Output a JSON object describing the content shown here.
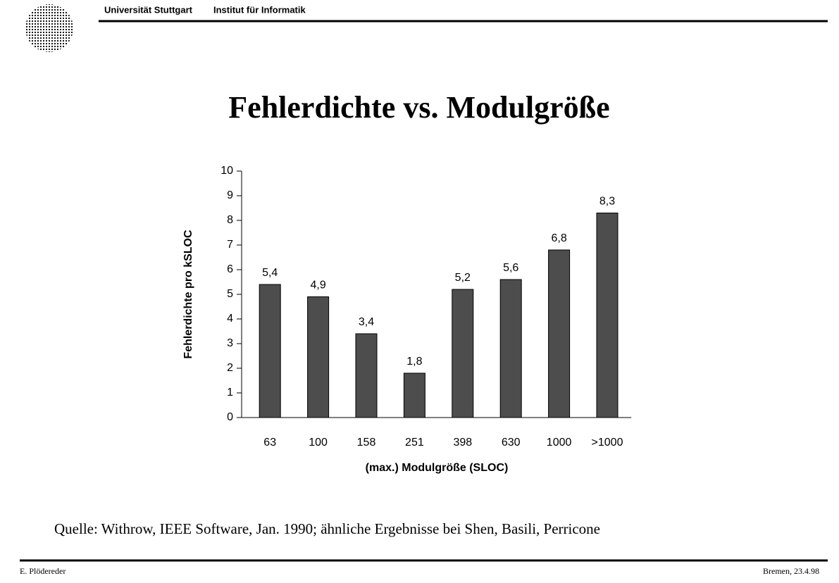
{
  "header": {
    "university": "Universität Stuttgart",
    "institute": "Institut für Informatik"
  },
  "title": "Fehlerdichte vs. Modulgröße",
  "chart_data": {
    "type": "bar",
    "x_label": "(max.) Modulgröße (SLOC)",
    "y_label": "Fehlerdichte pro kSLOC",
    "categories": [
      "63",
      "100",
      "158",
      "251",
      "398",
      "630",
      "1000",
      ">1000"
    ],
    "values": [
      5.4,
      4.9,
      3.4,
      1.8,
      5.2,
      5.6,
      6.8,
      8.3
    ],
    "value_labels": [
      "5,4",
      "4,9",
      "3,4",
      "1,8",
      "5,2",
      "5,6",
      "6,8",
      "8,3"
    ],
    "color": "#4d4d4d",
    "ylim": [
      0,
      10
    ],
    "yticks": [
      0,
      1,
      2,
      3,
      4,
      5,
      6,
      7,
      8,
      9,
      10
    ],
    "grid": false
  },
  "source": "Quelle: Withrow, IEEE Software, Jan. 1990;  ähnliche Ergebnisse bei Shen, Basili, Perricone",
  "footer": {
    "author": "E. Plödereder",
    "place_date": "Bremen, 23.4.98"
  }
}
